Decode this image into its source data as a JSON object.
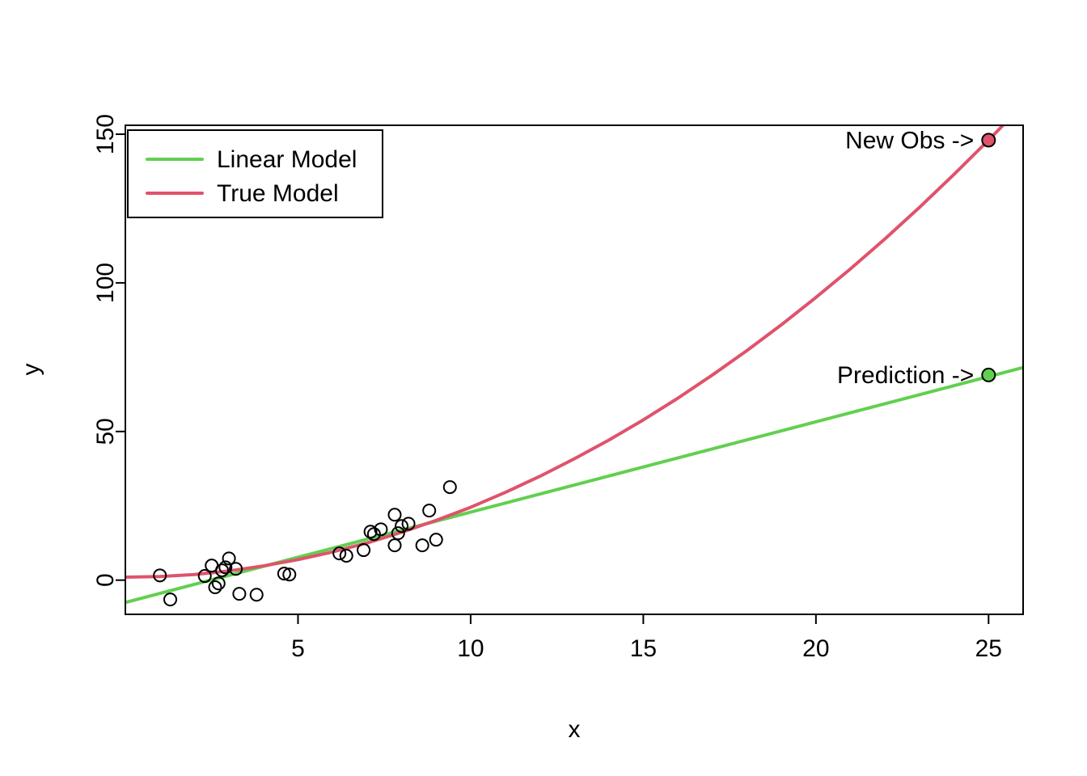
{
  "chart_data": {
    "type": "scatter",
    "title": "",
    "xlabel": "x",
    "ylabel": "y",
    "xlim": [
      0,
      26
    ],
    "ylim": [
      -11.5,
      153
    ],
    "x_ticks": [
      5,
      10,
      15,
      20,
      25
    ],
    "y_ticks": [
      0,
      50,
      100,
      150
    ],
    "grid": false,
    "colors": {
      "linear_model": "#61D04F",
      "true_model": "#DF536B",
      "scatter_stroke": "#000000",
      "background": "#FFFFFF"
    },
    "scatter_points": {
      "x": [
        1.0,
        1.3,
        2.3,
        2.5,
        2.6,
        2.7,
        2.8,
        2.9,
        3.0,
        3.2,
        3.3,
        3.8,
        4.6,
        4.75,
        6.2,
        6.4,
        6.9,
        7.1,
        7.2,
        7.4,
        7.8,
        7.8,
        7.9,
        8.0,
        8.2,
        8.6,
        8.8,
        9.0,
        9.4
      ],
      "y": [
        1.6,
        -6.5,
        1.4,
        4.9,
        -2.4,
        -1.1,
        3.3,
        4.3,
        7.3,
        3.8,
        -4.6,
        -4.9,
        2.2,
        1.9,
        9.0,
        8.2,
        10.1,
        16.3,
        15.5,
        17.1,
        22.0,
        11.7,
        15.8,
        18.2,
        19.0,
        11.7,
        23.4,
        13.6,
        31.3
      ]
    },
    "series": [
      {
        "name": "Linear Model",
        "type": "line",
        "color": "#61D04F",
        "x": [
          0,
          26
        ],
        "y": [
          -7.5,
          71.5
        ]
      },
      {
        "name": "True Model",
        "type": "curve",
        "color": "#DF536B",
        "x": [
          0,
          1,
          2,
          3,
          4,
          5,
          6,
          7,
          8,
          9,
          10,
          11,
          12,
          13,
          14,
          15,
          16,
          17,
          18,
          19,
          20,
          21,
          22,
          23,
          24,
          25,
          26
        ],
        "y": [
          1.0,
          1.2,
          1.9,
          3.1,
          4.8,
          6.9,
          9.5,
          12.5,
          16.1,
          20.1,
          24.5,
          29.5,
          34.9,
          40.8,
          47.1,
          53.9,
          61.2,
          69.0,
          77.2,
          85.9,
          95.1,
          104.7,
          114.8,
          125.4,
          136.5,
          148.0,
          160.0
        ]
      }
    ],
    "legend": {
      "position": "top-left",
      "entries": [
        {
          "label": "Linear Model",
          "color": "#61D04F"
        },
        {
          "label": "True Model",
          "color": "#DF536B"
        }
      ]
    },
    "annotations": [
      {
        "label": "New Obs ->",
        "x": 25,
        "y": 148,
        "point_color": "#DF536B"
      },
      {
        "label": "Prediction ->",
        "x": 25,
        "y": 69,
        "point_color": "#61D04F"
      }
    ]
  }
}
